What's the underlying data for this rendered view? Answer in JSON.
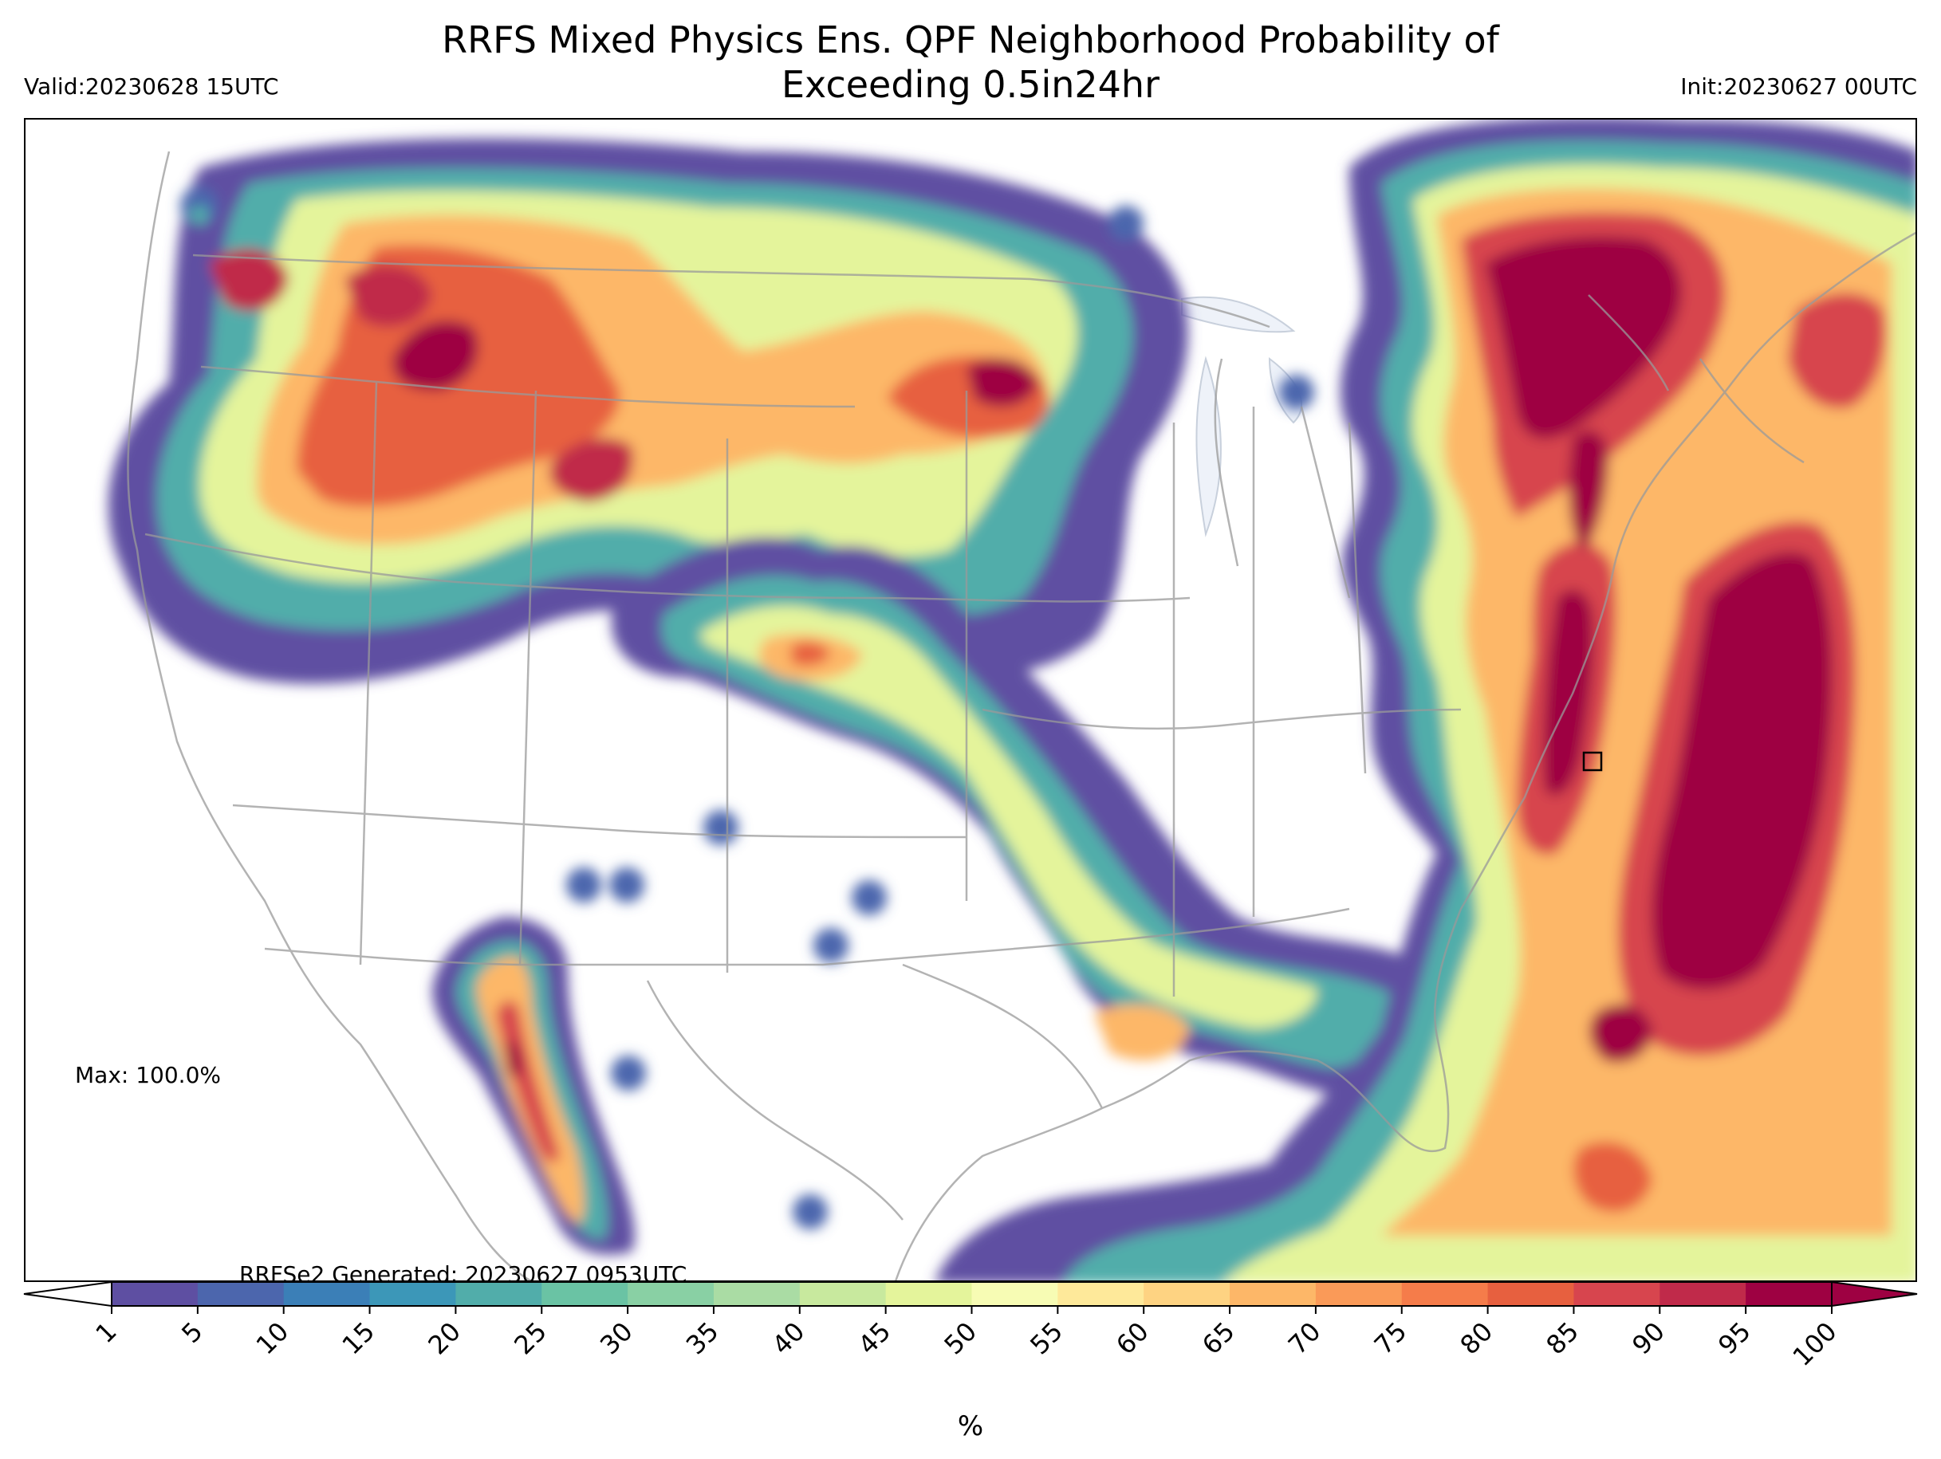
{
  "title": {
    "line1": "RRFS Mixed Physics Ens. QPF Neighborhood Probability of",
    "line2": "Exceeding 0.5in24hr"
  },
  "valid_label": "Valid:20230628 15UTC",
  "init_label": "Init:20230627 00UTC",
  "max_label": "Max: 100.0%",
  "generated_label": "RRFSe2 Generated: 20230627 0953UTC",
  "colorbar": {
    "unit_label": "%",
    "ticks": [
      "1",
      "5",
      "10",
      "15",
      "20",
      "25",
      "30",
      "35",
      "40",
      "45",
      "50",
      "55",
      "60",
      "65",
      "70",
      "75",
      "80",
      "85",
      "90",
      "95",
      "100"
    ],
    "colors": [
      "#5e4fa2",
      "#4c66ad",
      "#3b7fb7",
      "#3c97b8",
      "#51adaa",
      "#6ac3a4",
      "#89d0a4",
      "#aadca4",
      "#c8e99e",
      "#e4f49b",
      "#f7fcb4",
      "#fee99a",
      "#fed382",
      "#fdb768",
      "#fa9a58",
      "#f57c4a",
      "#e7603f",
      "#d7454e",
      "#c02a4a",
      "#9e0142"
    ]
  }
}
